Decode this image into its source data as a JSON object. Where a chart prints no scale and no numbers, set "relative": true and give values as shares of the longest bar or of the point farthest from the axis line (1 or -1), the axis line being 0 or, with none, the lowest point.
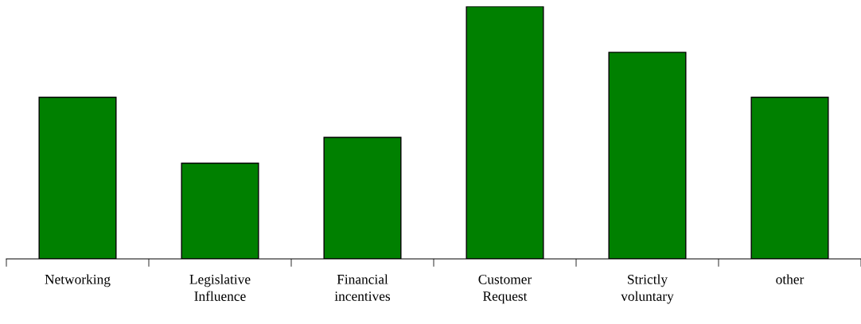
{
  "chart_data": {
    "type": "bar",
    "relative": true,
    "categories": [
      "Networking",
      "Legislative\nInfluence",
      "Financial\nincentives",
      "Customer\nRequest",
      "Strictly\nvoluntary",
      "other"
    ],
    "values": [
      0.64,
      0.379,
      0.481,
      1,
      0.818,
      0.64
    ],
    "color": "#008000",
    "grid": false,
    "legend": false
  }
}
